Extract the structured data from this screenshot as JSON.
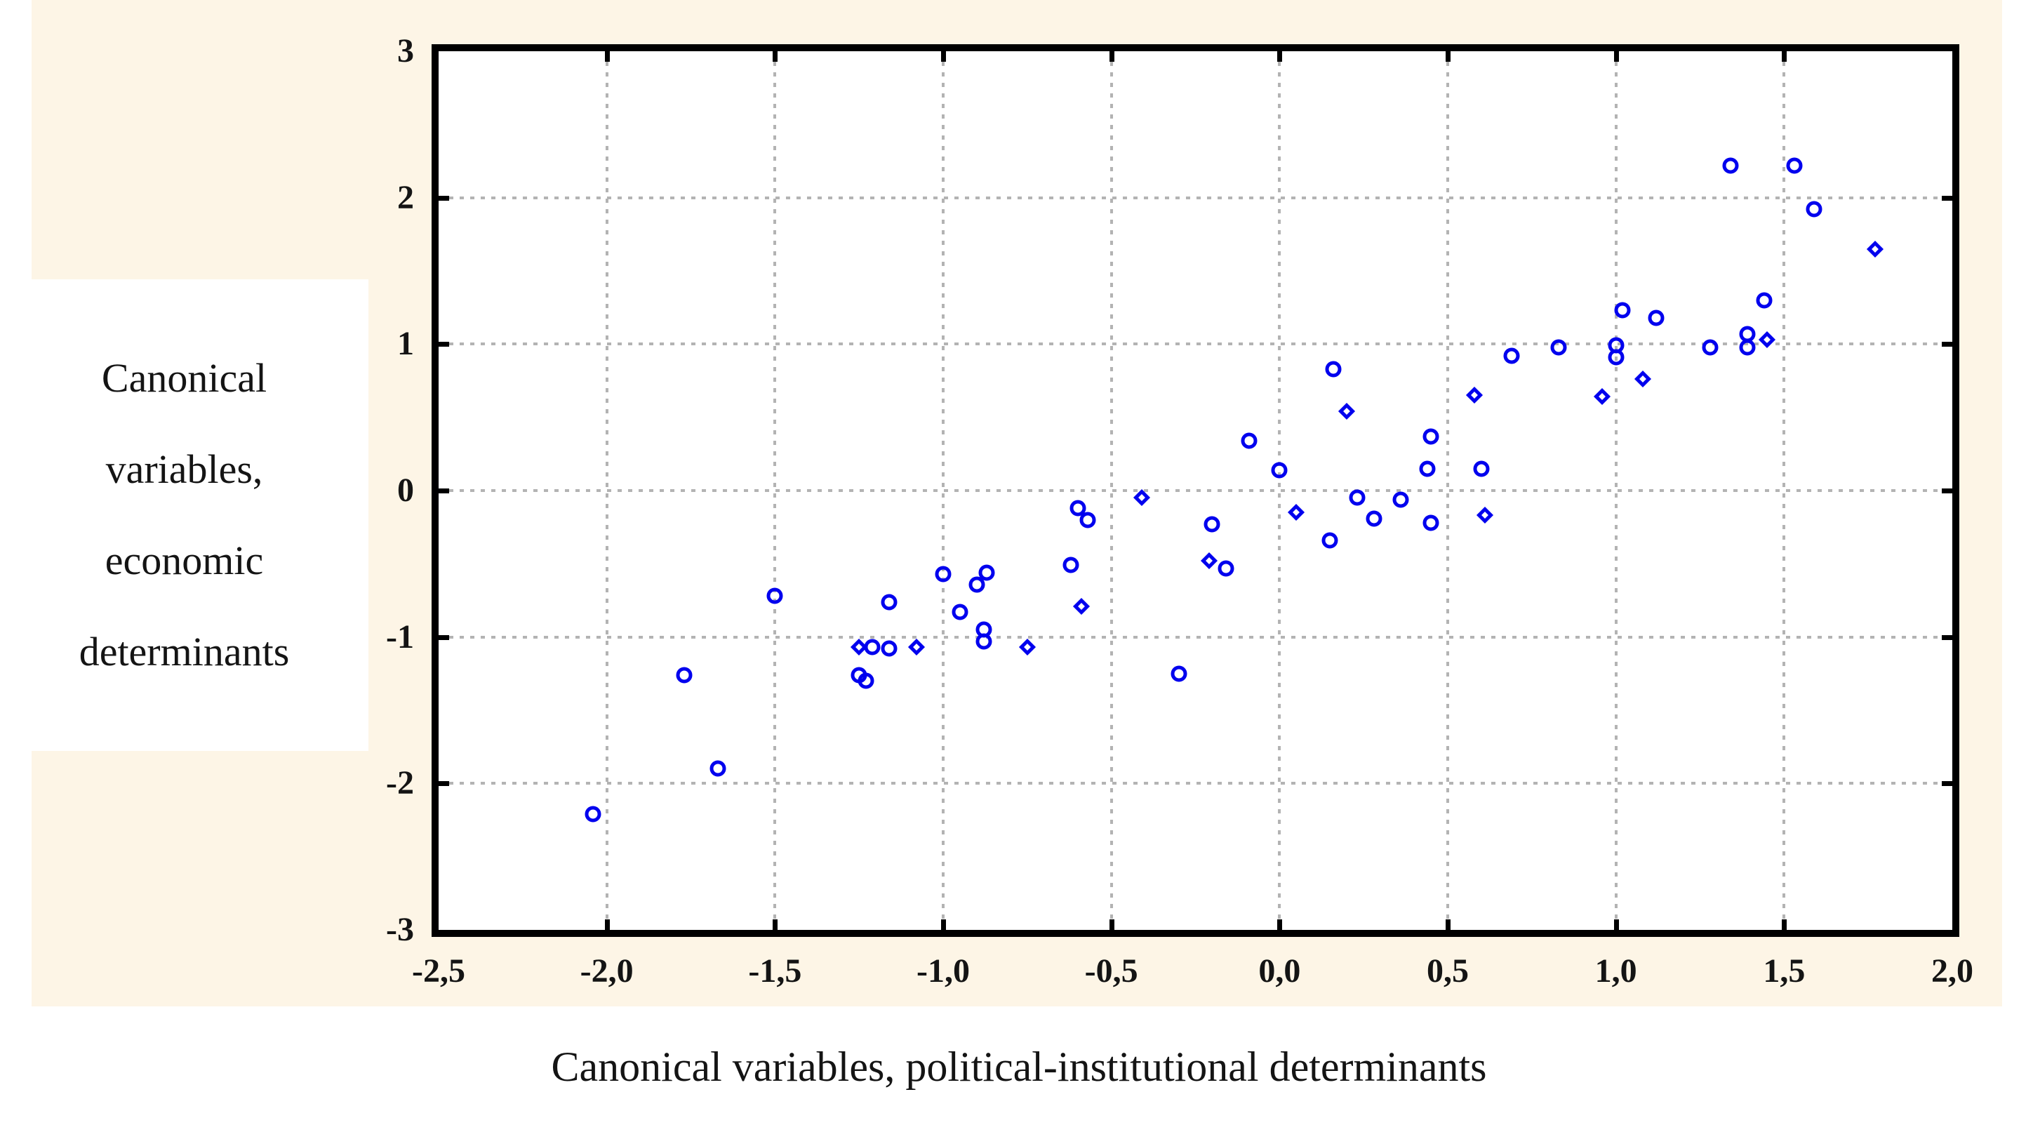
{
  "figure": {
    "y_axis_title_lines": [
      "Canonical",
      "variables,",
      "economic",
      "determinants"
    ],
    "x_axis_title": "Canonical variables, political-institutional determinants",
    "colors": {
      "canvas_bg": "#FDF5E6",
      "plot_bg": "#FFFFFF",
      "marker": "#0000EE",
      "grid": "#B3B3B3",
      "border": "#000000",
      "text": "#141414"
    }
  },
  "chart_data": {
    "type": "scatter",
    "title": "",
    "xlabel": "Canonical variables, political-institutional determinants",
    "ylabel": "Canonical variables, economic determinants",
    "xlim": [
      -2.5,
      2.0
    ],
    "ylim": [
      -3,
      3
    ],
    "grid": "dotted",
    "legend_position": "none",
    "x_tick_values": [
      -2.5,
      -2.0,
      -1.5,
      -1.0,
      -0.5,
      0.0,
      0.5,
      1.0,
      1.5,
      2.0
    ],
    "x_tick_labels": [
      "-2,5",
      "-2,0",
      "-1,5",
      "-1,0",
      "-0,5",
      "0,0",
      "0,5",
      "1,0",
      "1,5",
      "2,0"
    ],
    "y_tick_values": [
      3,
      2,
      1,
      0,
      -1,
      -2,
      -3
    ],
    "y_tick_labels": [
      "3",
      "2",
      "1",
      "0",
      "-1",
      "-2",
      "-3"
    ],
    "series": [
      {
        "marker": "circle",
        "points": [
          [
            -2.04,
            -2.21
          ],
          [
            -1.77,
            -1.26
          ],
          [
            -1.67,
            -1.9
          ],
          [
            -1.5,
            -0.72
          ],
          [
            -1.21,
            -1.07
          ],
          [
            -1.16,
            -1.08
          ],
          [
            -1.25,
            -1.26
          ],
          [
            -1.23,
            -1.3
          ],
          [
            -1.16,
            -0.76
          ],
          [
            -1.0,
            -0.57
          ],
          [
            -0.9,
            -0.64
          ],
          [
            -0.87,
            -0.56
          ],
          [
            -0.95,
            -0.83
          ],
          [
            -0.88,
            -0.95
          ],
          [
            -0.88,
            -1.03
          ],
          [
            -0.62,
            -0.51
          ],
          [
            -0.3,
            -1.25
          ],
          [
            -0.6,
            -0.12
          ],
          [
            -0.57,
            -0.2
          ],
          [
            -0.2,
            -0.23
          ],
          [
            -0.16,
            -0.53
          ],
          [
            0.0,
            0.14
          ],
          [
            -0.09,
            0.34
          ],
          [
            0.23,
            -0.05
          ],
          [
            0.36,
            -0.06
          ],
          [
            0.28,
            -0.19
          ],
          [
            0.15,
            -0.34
          ],
          [
            0.45,
            -0.22
          ],
          [
            0.16,
            0.83
          ],
          [
            0.45,
            0.37
          ],
          [
            0.44,
            0.15
          ],
          [
            0.6,
            0.15
          ],
          [
            0.69,
            0.92
          ],
          [
            0.83,
            0.98
          ],
          [
            1.0,
            0.99
          ],
          [
            1.0,
            0.91
          ],
          [
            1.02,
            1.23
          ],
          [
            1.12,
            1.18
          ],
          [
            1.28,
            0.98
          ],
          [
            1.39,
            1.07
          ],
          [
            1.39,
            0.98
          ],
          [
            1.44,
            1.3
          ],
          [
            1.34,
            2.22
          ],
          [
            1.53,
            2.22
          ],
          [
            1.59,
            1.92
          ]
        ]
      },
      {
        "marker": "diamond",
        "points": [
          [
            -1.25,
            -1.07
          ],
          [
            -1.08,
            -1.07
          ],
          [
            -0.75,
            -1.07
          ],
          [
            -0.59,
            -0.79
          ],
          [
            -0.41,
            -0.05
          ],
          [
            -0.21,
            -0.48
          ],
          [
            0.05,
            -0.15
          ],
          [
            0.61,
            -0.17
          ],
          [
            0.2,
            0.54
          ],
          [
            0.58,
            0.65
          ],
          [
            0.96,
            0.64
          ],
          [
            1.08,
            0.76
          ],
          [
            1.45,
            1.03
          ],
          [
            1.77,
            1.65
          ]
        ]
      }
    ]
  }
}
